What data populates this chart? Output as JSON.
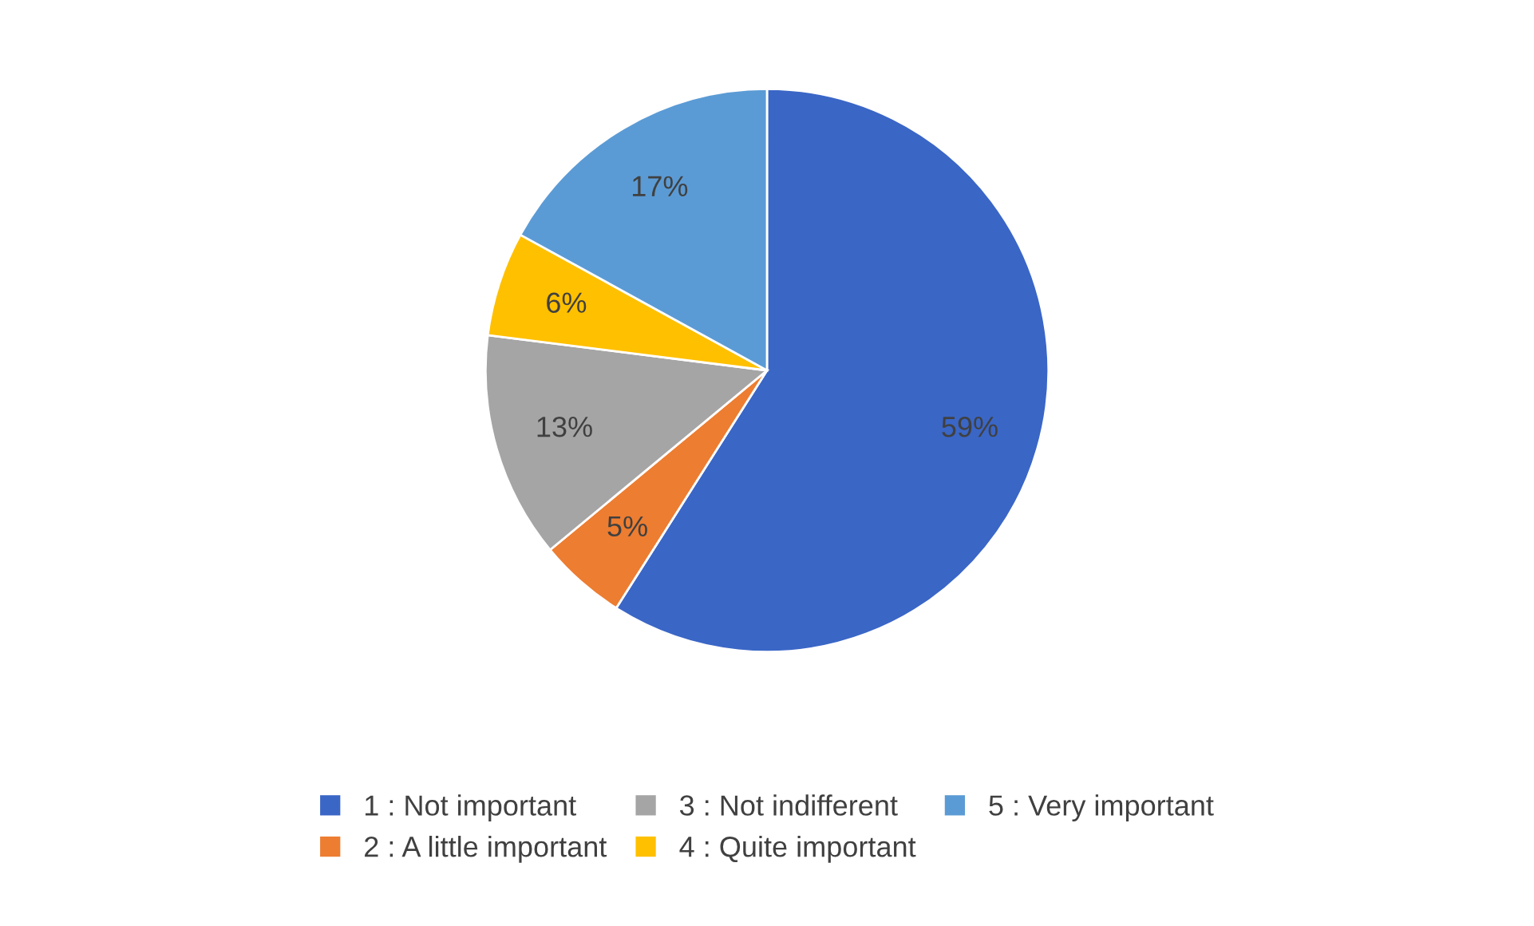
{
  "chart_data": {
    "type": "pie",
    "categories": [
      "1 : Not important",
      "2 : A little important",
      "3 : Not indifferent",
      "4 : Quite important",
      "5 : Very important"
    ],
    "values": [
      59,
      5,
      13,
      6,
      17
    ],
    "colors": [
      "#3a66c6",
      "#ed7d31",
      "#a5a5a5",
      "#ffc000",
      "#5b9bd5"
    ],
    "value_labels": [
      "59%",
      "5%",
      "13%",
      "6%",
      "17%"
    ],
    "legend": "bottom"
  }
}
